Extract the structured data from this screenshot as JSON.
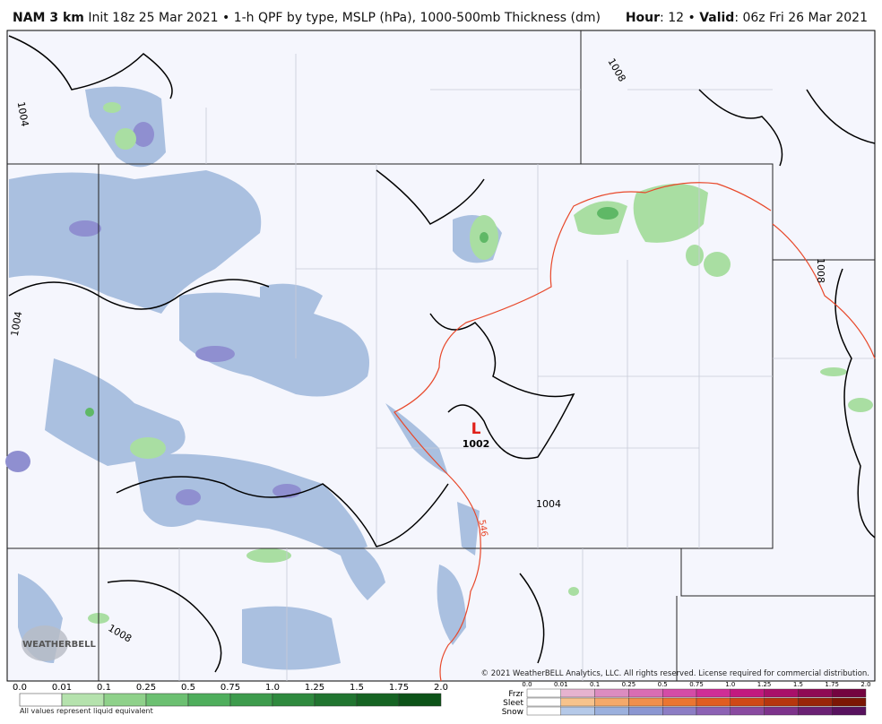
{
  "header": {
    "model": "NAM 3 km",
    "description": "Init 18z 25 Mar 2021 • 1-h QPF by type, MSLP (hPa), 1000-500mb Thickness (dm)",
    "hour_label": "Hour",
    "hour_value": ": 12 • ",
    "valid_label": "Valid",
    "valid_value": ": 06z Fri 26 Mar 2021"
  },
  "map": {
    "isobar_labels": [
      "1004",
      "1008",
      "1004",
      "1008",
      "1004",
      "1008"
    ],
    "low": {
      "symbol": "L",
      "pressure": "1002"
    },
    "thickness_label": "546",
    "copyright": "© 2021 WeatherBELL Analytics, LLC. All rights reserved. License required for commercial distribution.",
    "logo": "WEATHERBELL"
  },
  "rain_legend": {
    "ticks": [
      "0.0",
      "0.01",
      "0.1",
      "0.25",
      "0.5",
      "0.75",
      "1.0",
      "1.25",
      "1.5",
      "1.75",
      "2.0"
    ],
    "note": "All values represent liquid equivalent"
  },
  "ptype_legend": {
    "types": [
      "Frzr",
      "Sleet",
      "Snow"
    ],
    "ticks": [
      "0.0",
      "0.01",
      "0.1",
      "0.25",
      "0.5",
      "0.75",
      "1.0",
      "1.25",
      "1.5",
      "1.75",
      "2.0"
    ]
  }
}
